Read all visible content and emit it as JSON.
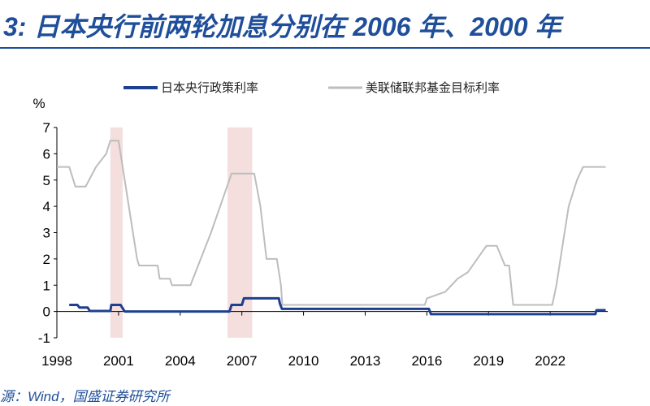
{
  "header": {
    "title": "3: 日本央行前两轮加息分别在 2006 年、2000 年"
  },
  "footer": {
    "source": "源：Wind，国盛证券研究所"
  },
  "colors": {
    "boj": "#1f3f8f",
    "fed": "#bdbdbd",
    "shade": "#f4dede",
    "title": "#1f4e9a"
  },
  "chart_data": {
    "type": "line",
    "title": "3: 日本央行前两轮加息分别在 2006 年、2000 年",
    "xlabel": "",
    "ylabel": "%",
    "xlim": [
      1998,
      2024.8
    ],
    "ylim": [
      -1,
      7
    ],
    "x_ticks": [
      1998,
      2001,
      2004,
      2007,
      2010,
      2013,
      2016,
      2019,
      2022
    ],
    "y_ticks": [
      -1,
      0,
      1,
      2,
      3,
      4,
      5,
      6,
      7
    ],
    "legend_position": "top",
    "grid": false,
    "shaded_periods": [
      [
        2000.6,
        2001.2
      ],
      [
        2006.3,
        2007.5
      ]
    ],
    "series": [
      {
        "name": "日本央行政策利率",
        "color": "#1f3f8f",
        "points": [
          [
            1998.6,
            0.25
          ],
          [
            1999.0,
            0.25
          ],
          [
            1999.1,
            0.15
          ],
          [
            1999.5,
            0.15
          ],
          [
            1999.6,
            0.02
          ],
          [
            2000.6,
            0.02
          ],
          [
            2000.65,
            0.25
          ],
          [
            2001.1,
            0.25
          ],
          [
            2001.2,
            0.12
          ],
          [
            2001.3,
            0.0
          ],
          [
            2006.4,
            0.0
          ],
          [
            2006.5,
            0.25
          ],
          [
            2007.0,
            0.25
          ],
          [
            2007.1,
            0.5
          ],
          [
            2008.8,
            0.5
          ],
          [
            2008.85,
            0.3
          ],
          [
            2008.95,
            0.1
          ],
          [
            2016.1,
            0.1
          ],
          [
            2016.2,
            -0.1
          ],
          [
            2024.2,
            -0.1
          ],
          [
            2024.25,
            0.05
          ],
          [
            2024.7,
            0.05
          ]
        ]
      },
      {
        "name": "美联储联邦基金目标利率",
        "color": "#bdbdbd",
        "points": [
          [
            1998.0,
            5.5
          ],
          [
            1998.6,
            5.5
          ],
          [
            1998.9,
            4.75
          ],
          [
            1999.4,
            4.75
          ],
          [
            1999.9,
            5.5
          ],
          [
            2000.4,
            6.0
          ],
          [
            2000.6,
            6.5
          ],
          [
            2001.0,
            6.5
          ],
          [
            2001.3,
            5.0
          ],
          [
            2001.6,
            3.5
          ],
          [
            2001.9,
            2.0
          ],
          [
            2002.0,
            1.75
          ],
          [
            2002.9,
            1.75
          ],
          [
            2003.0,
            1.25
          ],
          [
            2003.5,
            1.25
          ],
          [
            2003.6,
            1.0
          ],
          [
            2004.5,
            1.0
          ],
          [
            2005.5,
            3.0
          ],
          [
            2006.5,
            5.25
          ],
          [
            2007.6,
            5.25
          ],
          [
            2007.9,
            4.0
          ],
          [
            2008.2,
            2.0
          ],
          [
            2008.7,
            2.0
          ],
          [
            2008.9,
            1.0
          ],
          [
            2008.97,
            0.25
          ],
          [
            2015.9,
            0.25
          ],
          [
            2016.0,
            0.5
          ],
          [
            2016.9,
            0.75
          ],
          [
            2017.5,
            1.25
          ],
          [
            2018.0,
            1.5
          ],
          [
            2018.9,
            2.5
          ],
          [
            2019.4,
            2.5
          ],
          [
            2019.8,
            1.75
          ],
          [
            2020.0,
            1.75
          ],
          [
            2020.2,
            0.25
          ],
          [
            2022.1,
            0.25
          ],
          [
            2022.3,
            1.0
          ],
          [
            2022.6,
            2.5
          ],
          [
            2022.9,
            4.0
          ],
          [
            2023.3,
            5.0
          ],
          [
            2023.6,
            5.5
          ],
          [
            2024.7,
            5.5
          ]
        ]
      }
    ]
  }
}
